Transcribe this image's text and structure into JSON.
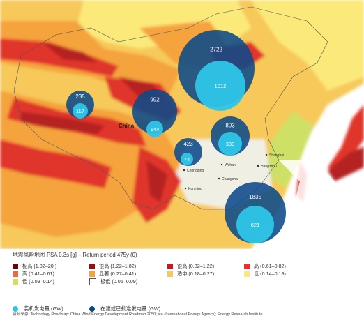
{
  "map": {
    "country_label": "China",
    "city_labels": [
      "Chongqing",
      "Changsha",
      "Kunming",
      "Wuhan",
      "Shanghai",
      "Hangzhou"
    ],
    "colors": {
      "very_high": "#5a0a0a",
      "very_high_2": "#8b1313",
      "very_high_3": "#b52020",
      "high": "#e0342a",
      "high_2": "#ee6a3a",
      "medium": "#f5a33c",
      "moderate": "#f6c95a",
      "low": "#fbe97a",
      "low_2": "#cfe066",
      "very_low": "#ffffff",
      "installed": "#2ec6e8",
      "approved": "#0b4a8a"
    },
    "bubbles": [
      {
        "region": "northwest-small",
        "approved": 235,
        "installed": 117
      },
      {
        "region": "northwest",
        "approved": 992,
        "installed": 144
      },
      {
        "region": "north",
        "approved": 2722,
        "installed": 1012
      },
      {
        "region": "east",
        "approved": 803,
        "installed": 339
      },
      {
        "region": "central",
        "approved": 423,
        "installed": 74
      },
      {
        "region": "south",
        "approved": 1835,
        "installed": 621
      }
    ]
  },
  "legend": {
    "title": "地震风险地图 PSA 0.3s [g] – Return period 475y (0)",
    "items": [
      {
        "label": "极高 (1.82–20     )",
        "color": "#5a0a0a"
      },
      {
        "label": "很高 (1.22–1.82)",
        "color": "#8b1313"
      },
      {
        "label": "很高 (0.82–1.22)",
        "color": "#b52020"
      },
      {
        "label": "高 (0.61–0.82)",
        "color": "#e0342a"
      },
      {
        "label": "高 (0.41–0.61)",
        "color": "#ee6a3a"
      },
      {
        "label": "显著 (0.27–0.41)",
        "color": "#f5a33c"
      },
      {
        "label": "适中 (0.18–0.27)",
        "color": "#f6c95a"
      },
      {
        "label": "低 (0.14–0.18)",
        "color": "#fbe97a"
      },
      {
        "label": "低 (0.09–0.14)",
        "color": "#cfe066"
      },
      {
        "label": "极低 (0.06–0.09)",
        "color": "#ffffff"
      }
    ],
    "capacity": [
      {
        "label": "装机发电量 (GW)",
        "color": "#2ec6e8"
      },
      {
        "label": "在建或已批准发电量 (GW)",
        "color": "#0b4a8a"
      }
    ]
  },
  "source": "资料来源: Technology Roadmap: China Wind Energy Development Roadmap 2050; iea (International Energy Agency); Energy Research Institute"
}
